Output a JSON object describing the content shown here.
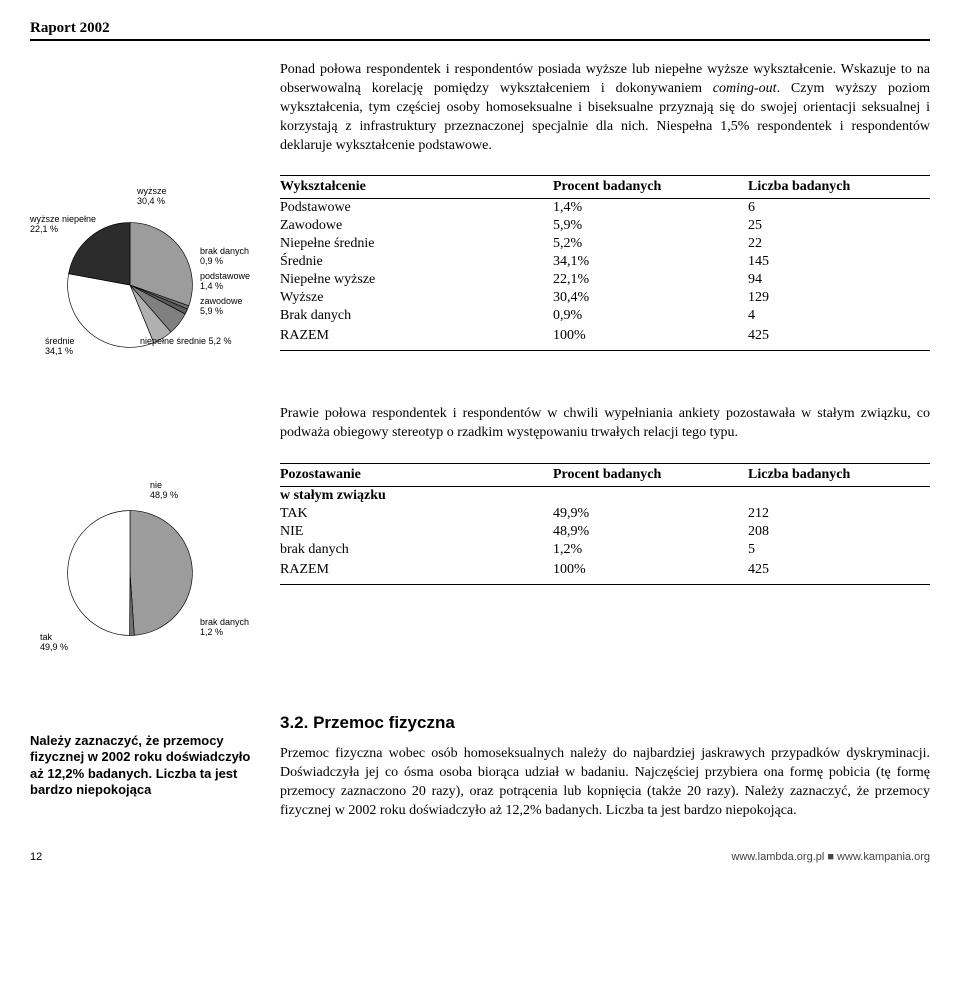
{
  "report_title": "Raport 2002",
  "para1_a": "Ponad połowa respondentek i respondentów posiada wyższe lub niepełne wyższe wykształcenie. Wskazuje to na obserwowalną korelację pomiędzy wykształceniem i dokonywaniem ",
  "para1_b": "coming-out",
  "para1_c": ". Czym wyższy poziom wykształcenia, tym częściej osoby homoseksualne i biseksualne przyznają się do swojej orientacji seksualnej i korzystają z infrastruktury przeznaczonej specjalnie dla nich. Niespełna 1,5% respondentek i respondentów deklaruje wykształcenie podstawowe.",
  "pie1": {
    "slices": [
      {
        "label": "wyższe",
        "pct": "30,4 %",
        "value": 30.4,
        "color": "#9c9c9c"
      },
      {
        "label": "brak danych",
        "pct": "0,9 %",
        "value": 0.9,
        "color": "#707070"
      },
      {
        "label": "podstawowe",
        "pct": "1,4 %",
        "value": 1.4,
        "color": "#5a5a5a"
      },
      {
        "label": "zawodowe",
        "pct": "5,9 %",
        "value": 5.9,
        "color": "#808080"
      },
      {
        "label": "niepełne średnie 5,2 %",
        "pct": "",
        "value": 5.2,
        "color": "#b0b0b0"
      },
      {
        "label": "średnie",
        "pct": "34,1 %",
        "value": 34.1,
        "color": "#ffffff"
      },
      {
        "label": "wyższe niepełne",
        "pct": "22,1 %",
        "value": 22.1,
        "color": "#2c2c2c"
      }
    ],
    "stroke": "#000000"
  },
  "table1": {
    "headers": [
      "Wykształcenie",
      "Procent badanych",
      "Liczba badanych"
    ],
    "rows": [
      [
        "Podstawowe",
        "1,4%",
        "6"
      ],
      [
        "Zawodowe",
        "5,9%",
        "25"
      ],
      [
        "Niepełne średnie",
        "5,2%",
        "22"
      ],
      [
        "Średnie",
        "34,1%",
        "145"
      ],
      [
        "Niepełne wyższe",
        "22,1%",
        "94"
      ],
      [
        "Wyższe",
        "30,4%",
        "129"
      ],
      [
        "Brak danych",
        "0,9%",
        "4"
      ]
    ],
    "total": [
      "RAZEM",
      "100%",
      "425"
    ]
  },
  "para2": "Prawie połowa respondentek i respondentów w chwili wypełniania ankiety pozostawała w stałym związku, co podważa obiegowy stereotyp o rzadkim występowaniu trwałych relacji tego typu.",
  "pie2": {
    "slices": [
      {
        "label": "nie",
        "pct": "48,9 %",
        "value": 48.9,
        "color": "#9c9c9c"
      },
      {
        "label": "brak danych",
        "pct": "1,2 %",
        "value": 1.2,
        "color": "#707070"
      },
      {
        "label": "tak",
        "pct": "49,9 %",
        "value": 49.9,
        "color": "#ffffff"
      }
    ],
    "stroke": "#000000"
  },
  "table2": {
    "headers": [
      "Pozostawanie w stałym związku",
      "Procent badanych",
      "Liczba badanych"
    ],
    "header_first_line": "Pozostawanie",
    "header_second_line": "w stałym związku",
    "rows": [
      [
        "TAK",
        "49,9%",
        "212"
      ],
      [
        "NIE",
        "48,9%",
        "208"
      ],
      [
        "brak danych",
        "1,2%",
        "5"
      ]
    ],
    "total": [
      "RAZEM",
      "100%",
      "425"
    ]
  },
  "section_heading": "3.2. Przemoc fizyczna",
  "callout": "Należy zaznaczyć, że przemocy fizycznej w 2002 roku doświadczyło aż 12,2% badanych. Liczba ta jest bardzo niepokojąca",
  "para3": "Przemoc fizyczna wobec osób homoseksualnych należy do najbardziej jaskrawych przypadków dyskryminacji. Doświadczyła jej co ósma osoba biorąca udział w badaniu. Najczęściej przybiera ona formę pobicia (tę formę przemocy zaznaczono 20 razy), oraz potrącenia lub kopnięcia (także 20 razy). Należy zaznaczyć, że przemocy fizycznej w 2002 roku doświadczyło aż 12,2% badanych. Liczba ta jest bardzo niepokojąca.",
  "footer": {
    "page": "12",
    "urls": "www.lambda.org.pl ■ www.kampania.org"
  }
}
